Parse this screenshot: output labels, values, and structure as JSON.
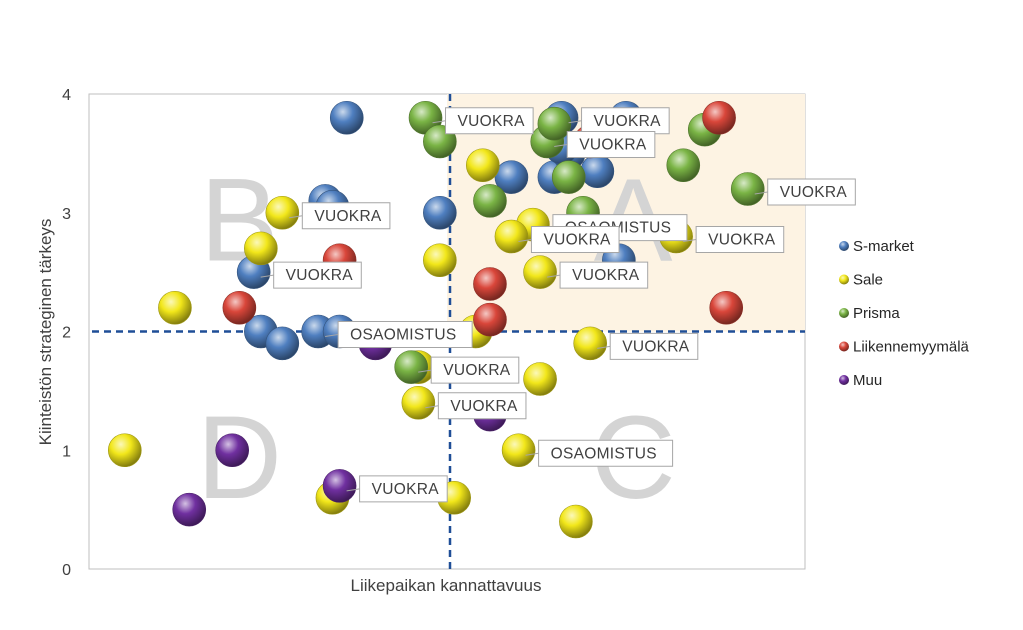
{
  "chart_data": {
    "type": "scatter",
    "xlabel": "Liikepaikan kannattavuus",
    "ylabel": "Kiinteistön strateginen tärkeys",
    "xlim": [
      0,
      10
    ],
    "ylim": [
      0,
      4
    ],
    "yticks": [
      "0",
      "1",
      "2",
      "3",
      "4"
    ],
    "grid": false,
    "legend_position": "right",
    "thresholds": {
      "x": 5,
      "y": 2
    },
    "highlight_region": {
      "x": [
        5,
        10
      ],
      "y": [
        2,
        4
      ],
      "color": "#fdf3e3"
    },
    "quadrant_labels": [
      {
        "text": "A",
        "x": 7.6,
        "y": 2.95
      },
      {
        "text": "B",
        "x": 2.1,
        "y": 2.95
      },
      {
        "text": "C",
        "x": 7.6,
        "y": 0.95
      },
      {
        "text": "D",
        "x": 2.1,
        "y": 0.95
      }
    ],
    "series": [
      {
        "name": "S-market",
        "color": "#4f7fc0",
        "points": [
          [
            3.6,
            3.8
          ],
          [
            3.3,
            3.1
          ],
          [
            3.4,
            3.05
          ],
          [
            4.9,
            3.0
          ],
          [
            5.9,
            3.3
          ],
          [
            6.5,
            3.3
          ],
          [
            6.6,
            3.8
          ],
          [
            7.5,
            3.8
          ],
          [
            6.7,
            3.5
          ],
          [
            7.1,
            3.35
          ],
          [
            7.4,
            2.6
          ],
          [
            2.3,
            2.5
          ],
          [
            2.4,
            2.0
          ],
          [
            2.7,
            1.9
          ],
          [
            3.2,
            2.0
          ],
          [
            3.5,
            2.0
          ],
          [
            6.6,
            3.55
          ]
        ]
      },
      {
        "name": "Sale",
        "color": "#f2e71a",
        "points": [
          [
            0.5,
            1.0
          ],
          [
            1.2,
            2.2
          ],
          [
            2.4,
            2.7
          ],
          [
            2.7,
            3.0
          ],
          [
            4.9,
            2.6
          ],
          [
            5.5,
            3.4
          ],
          [
            6.2,
            2.9
          ],
          [
            5.9,
            2.8
          ],
          [
            6.3,
            2.5
          ],
          [
            8.2,
            2.8
          ],
          [
            4.6,
            1.7
          ],
          [
            4.6,
            1.4
          ],
          [
            5.4,
            2.0
          ],
          [
            6.3,
            1.6
          ],
          [
            7.0,
            1.9
          ],
          [
            6.0,
            1.0
          ],
          [
            3.4,
            0.6
          ],
          [
            5.1,
            0.6
          ],
          [
            6.8,
            0.4
          ]
        ]
      },
      {
        "name": "Prisma",
        "color": "#7ab445",
        "points": [
          [
            4.7,
            3.8
          ],
          [
            4.9,
            3.6
          ],
          [
            5.6,
            3.1
          ],
          [
            6.4,
            3.6
          ],
          [
            6.7,
            3.3
          ],
          [
            6.9,
            3.0
          ],
          [
            8.3,
            3.4
          ],
          [
            8.6,
            3.7
          ],
          [
            9.2,
            3.2
          ],
          [
            4.5,
            1.7
          ],
          [
            6.5,
            3.75
          ]
        ]
      },
      {
        "name": "Liikennemyymälä",
        "color": "#d9463a",
        "points": [
          [
            8.8,
            3.8
          ],
          [
            3.5,
            2.6
          ],
          [
            2.1,
            2.2
          ],
          [
            5.6,
            2.4
          ],
          [
            5.6,
            2.1
          ],
          [
            8.9,
            2.2
          ],
          [
            7.0,
            3.6
          ]
        ]
      },
      {
        "name": "Muu",
        "color": "#7030a0",
        "points": [
          [
            1.4,
            0.5
          ],
          [
            2.0,
            1.0
          ],
          [
            3.5,
            0.7
          ],
          [
            4.0,
            1.9
          ],
          [
            5.6,
            1.3
          ]
        ]
      }
    ],
    "annotations": [
      {
        "text": "VUOKRA",
        "x": 4.7,
        "y": 3.8
      },
      {
        "text": "VUOKRA",
        "x": 6.6,
        "y": 3.8
      },
      {
        "text": "VUOKRA",
        "x": 6.4,
        "y": 3.6
      },
      {
        "text": "VUOKRA",
        "x": 9.2,
        "y": 3.2
      },
      {
        "text": "VUOKRA",
        "x": 2.7,
        "y": 3.0
      },
      {
        "text": "OSAOMISTUS",
        "x": 6.2,
        "y": 2.9
      },
      {
        "text": "VUOKRA",
        "x": 5.9,
        "y": 2.8
      },
      {
        "text": "VUOKRA",
        "x": 8.2,
        "y": 2.8
      },
      {
        "text": "VUOKRA",
        "x": 2.3,
        "y": 2.5
      },
      {
        "text": "VUOKRA",
        "x": 6.3,
        "y": 2.5
      },
      {
        "text": "OSAOMISTUS",
        "x": 3.2,
        "y": 2.0
      },
      {
        "text": "VUOKRA",
        "x": 7.0,
        "y": 1.9
      },
      {
        "text": "VUOKRA",
        "x": 4.5,
        "y": 1.7
      },
      {
        "text": "VUOKRA",
        "x": 4.6,
        "y": 1.4
      },
      {
        "text": "OSAOMISTUS",
        "x": 6.0,
        "y": 1.0
      },
      {
        "text": "VUOKRA",
        "x": 3.5,
        "y": 0.7
      }
    ]
  }
}
